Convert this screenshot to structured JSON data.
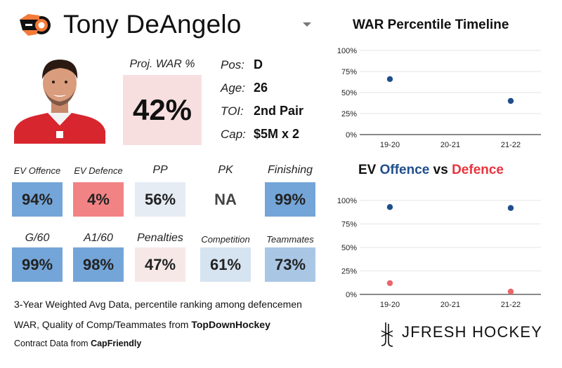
{
  "player": {
    "name": "Tony DeAngelo",
    "team_logo_icon": "flyers-logo-icon",
    "photo_icon": "player-headshot-icon"
  },
  "proj_war": {
    "label": "Proj. WAR %",
    "value": "42%",
    "color": "#f7dfe0"
  },
  "info": [
    {
      "label": "Pos:",
      "value": "D"
    },
    {
      "label": "Age:",
      "value": "26"
    },
    {
      "label": "TOI:",
      "value": "2nd Pair"
    },
    {
      "label": "Cap:",
      "value": "$5M x 2"
    }
  ],
  "metrics_row1": [
    {
      "label": "EV Offence",
      "value": "94%",
      "color": "#74a5d8"
    },
    {
      "label": "EV Defence",
      "value": "4%",
      "color": "#f28385"
    },
    {
      "label": "PP",
      "value": "56%",
      "color": "#e5ecf4"
    },
    {
      "label": "PK",
      "value": "NA",
      "color": "#ffffff"
    },
    {
      "label": "Finishing",
      "value": "99%",
      "color": "#74a5d8"
    }
  ],
  "metrics_row2": [
    {
      "label": "G/60",
      "value": "99%",
      "color": "#74a5d8"
    },
    {
      "label": "A1/60",
      "value": "98%",
      "color": "#74a5d8"
    },
    {
      "label": "Penalties",
      "value": "47%",
      "color": "#f7e8e8"
    },
    {
      "label": "Competition",
      "value": "61%",
      "color": "#d6e3f0"
    },
    {
      "label": "Teammates",
      "value": "73%",
      "color": "#a9c6e5"
    }
  ],
  "footer": {
    "line1": "3-Year Weighted Avg Data, percentile ranking among defencemen",
    "line2_prefix": "WAR, Quality of Comp/Teammates from ",
    "line2_source": "TopDownHockey",
    "line3_prefix": "Contract Data from ",
    "line3_source": "CapFriendly"
  },
  "brand": {
    "name": "JFRESH HOCKEY",
    "icon": "jfresh-logo-icon"
  },
  "chart_data": [
    {
      "type": "scatter",
      "title": "WAR Percentile Timeline",
      "categories": [
        "19-20",
        "20-21",
        "21-22"
      ],
      "series": [
        {
          "values": [
            66,
            null,
            40
          ],
          "color": "#1f4e8c"
        }
      ],
      "yticks": [
        "0%",
        "25%",
        "50%",
        "75%",
        "100%"
      ],
      "ylim": [
        0,
        100
      ],
      "grid": true,
      "legend": "none"
    },
    {
      "type": "scatter",
      "title_parts": [
        "EV ",
        "Offence",
        " vs ",
        "Defence"
      ],
      "categories": [
        "19-20",
        "20-21",
        "21-22"
      ],
      "series": [
        {
          "values": [
            93,
            null,
            92
          ],
          "color": "#1f4e8c"
        },
        {
          "values": [
            12,
            null,
            3
          ],
          "color": "#e8676c"
        }
      ],
      "yticks": [
        "0%",
        "25%",
        "50%",
        "75%",
        "100%"
      ],
      "ylim": [
        0,
        100
      ],
      "grid": true,
      "legend": "none"
    }
  ]
}
